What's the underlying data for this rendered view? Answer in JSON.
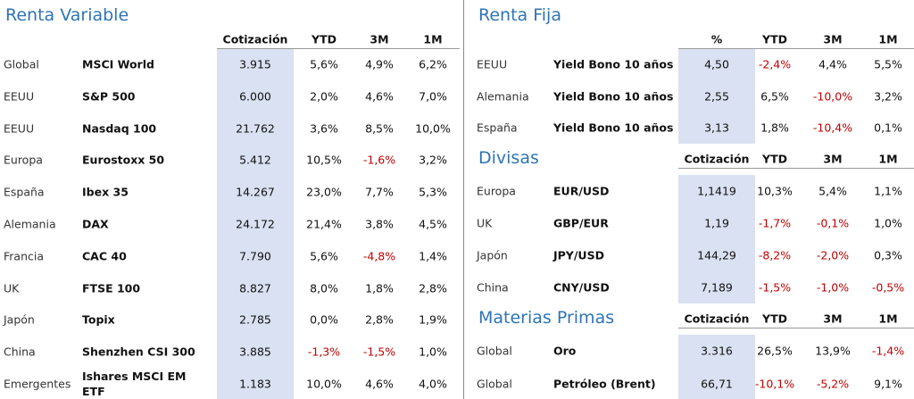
{
  "renta_variable": {
    "title": "Renta Variable",
    "headers": [
      "Cotización",
      "YTD",
      "3M",
      "1M"
    ],
    "rows": [
      [
        "Global",
        "MSCI World",
        "3.915",
        "5,6%",
        "4,9%",
        "6,2%"
      ],
      [
        "EEUU",
        "S&P 500",
        "6.000",
        "2,0%",
        "4,6%",
        "7,0%"
      ],
      [
        "EEUU",
        "Nasdaq 100",
        "21.762",
        "3,6%",
        "8,5%",
        "10,0%"
      ],
      [
        "Europa",
        "Eurostoxx 50",
        "5.412",
        "10,5%",
        "-1,6%",
        "3,2%"
      ],
      [
        "España",
        "Ibex 35",
        "14.267",
        "23,0%",
        "7,7%",
        "5,3%"
      ],
      [
        "Alemania",
        "DAX",
        "24.172",
        "21,4%",
        "3,8%",
        "4,5%"
      ],
      [
        "Francia",
        "CAC 40",
        "7.790",
        "5,6%",
        "-4,8%",
        "1,4%"
      ],
      [
        "UK",
        "FTSE 100",
        "8.827",
        "8,0%",
        "1,8%",
        "2,8%"
      ],
      [
        "Japón",
        "Topix",
        "2.785",
        "0,0%",
        "2,8%",
        "1,9%"
      ],
      [
        "China",
        "Shenzhen CSI 300",
        "3.885",
        "-1,3%",
        "-1,5%",
        "1,0%"
      ],
      [
        "Emergentes",
        "Ishares MSCI EM ETF",
        "1.183",
        "10,0%",
        "4,6%",
        "4,0%"
      ]
    ]
  },
  "sections": [
    {
      "title": "Renta Fija",
      "headers": [
        "%",
        "YTD",
        "3M",
        "1M"
      ],
      "rows": [
        [
          "EEUU",
          "Yield Bono 10 años",
          "4,50",
          "-2,4%",
          "4,4%",
          "5,5%"
        ],
        [
          "Alemania",
          "Yield Bono 10 años",
          "2,55",
          "6,5%",
          "-10,0%",
          "3,2%"
        ],
        [
          "España",
          "Yield Bono 10 años",
          "3,13",
          "1,8%",
          "-10,4%",
          "0,1%"
        ]
      ]
    },
    {
      "title": "Divisas",
      "headers": [
        "Cotización",
        "YTD",
        "3M",
        "1M"
      ],
      "rows": [
        [
          "Europa",
          "EUR/USD",
          "1,1419",
          "10,3%",
          "5,4%",
          "1,1%"
        ],
        [
          "UK",
          "GBP/EUR",
          "1,19",
          "-1,7%",
          "-0,1%",
          "1,0%"
        ],
        [
          "Japón",
          "JPY/USD",
          "144,29",
          "-8,2%",
          "-2,0%",
          "0,3%"
        ],
        [
          "China",
          "CNY/USD",
          "7,189",
          "-1,5%",
          "-1,0%",
          "-0,5%"
        ]
      ]
    },
    {
      "title": "Materias Primas",
      "headers": [
        "Cotización",
        "YTD",
        "3M",
        "1M"
      ],
      "rows": [
        [
          "Global",
          "Oro",
          "3.316",
          "26,5%",
          "13,9%",
          "-1,4%"
        ],
        [
          "Global",
          "Petróleo (Brent)",
          "66,71",
          "-10,1%",
          "-5,2%",
          "9,1%"
        ]
      ]
    }
  ]
}
